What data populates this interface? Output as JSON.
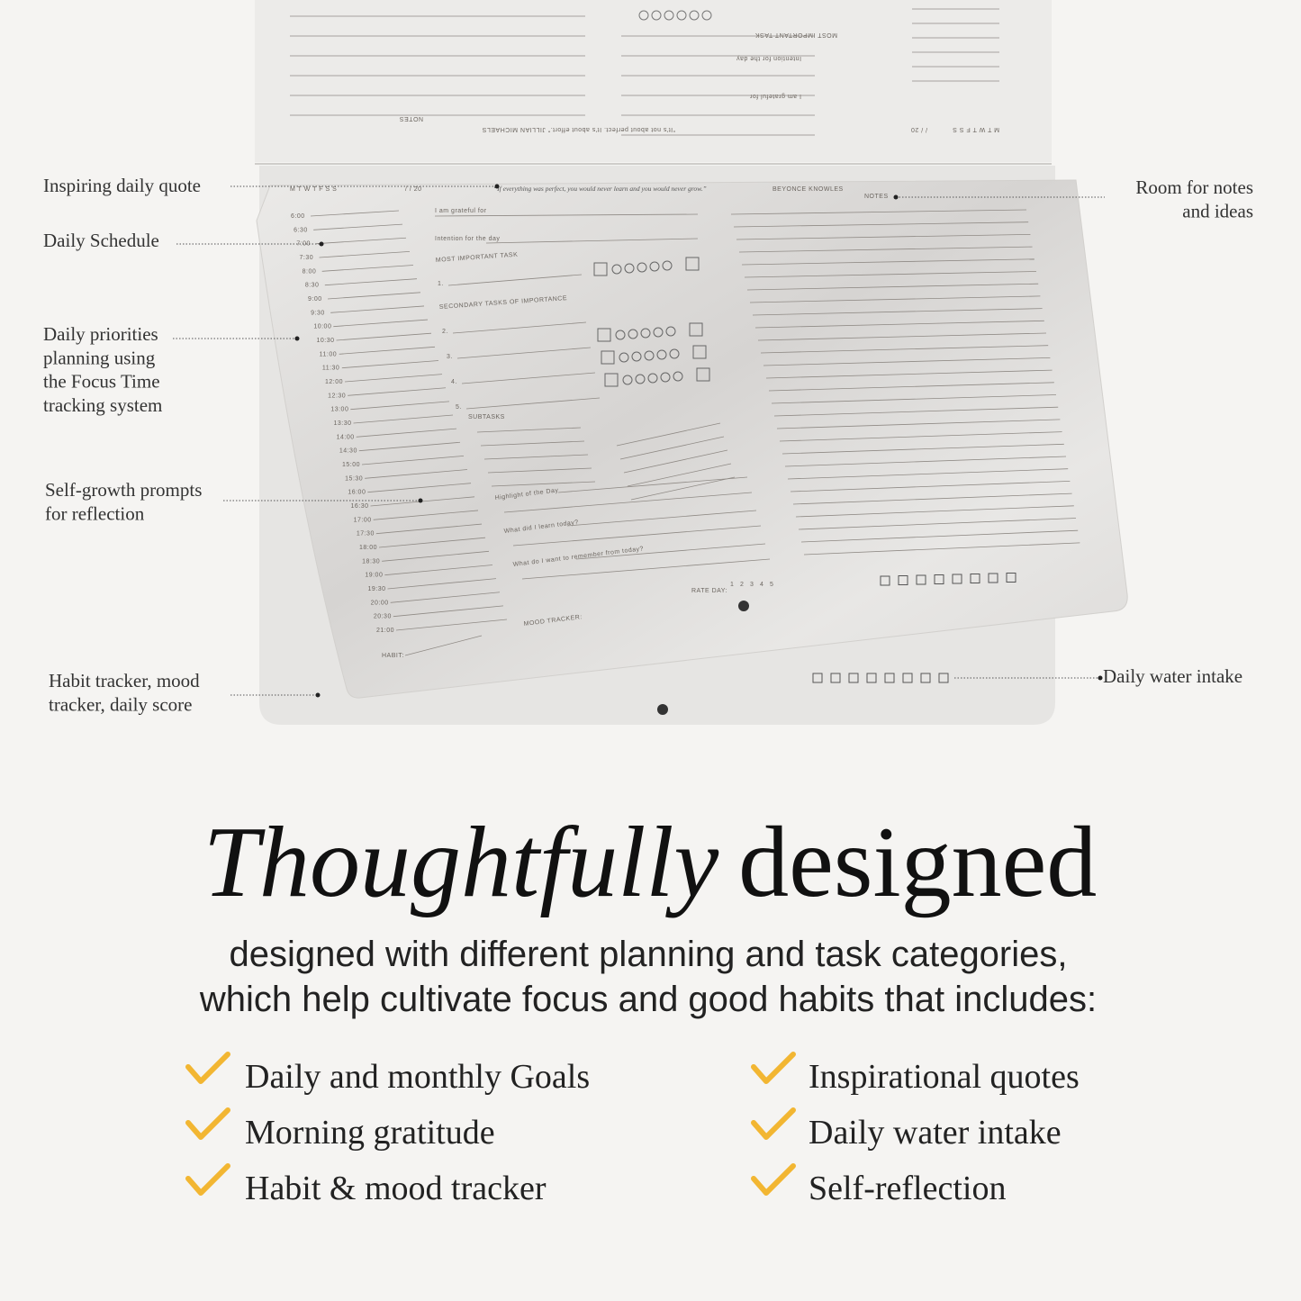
{
  "callouts": [
    {
      "lines": [
        "Inspiring daily quote"
      ]
    },
    {
      "lines": [
        "Daily Schedule"
      ]
    },
    {
      "lines": [
        "Daily priorities",
        "planning using",
        "the Focus Time",
        "tracking system"
      ]
    },
    {
      "lines": [
        "Self-growth prompts",
        "for reflection"
      ]
    },
    {
      "lines": [
        "Habit tracker, mood",
        "tracker, daily score"
      ]
    },
    {
      "lines": [
        "Room for notes",
        "and ideas"
      ]
    },
    {
      "lines": [
        "Daily water intake"
      ]
    }
  ],
  "back_page": {
    "notes": "NOTES",
    "most_important": "MOST IMPORTANT TASK",
    "intention": "Intention for the day",
    "grateful": "I am grateful for",
    "quote": "“It's not about perfect. It's about effort.” JILLIAN MICHAELS",
    "weekdays": "M T W T F S S",
    "date": "/ / 20"
  },
  "planner": {
    "weekdays": "M T W T F S S",
    "date": "/ / 20",
    "quote": "“If everything was perfect, you would never learn and you would never grow.”",
    "quote_author": "BEYONCE KNOWLES",
    "notes": "NOTES",
    "grateful": "I am grateful for",
    "intention": "Intention for the day",
    "most_important": "MOST IMPORTANT TASK",
    "secondary": "SECONDARY TASKS OF IMPORTANCE",
    "subtasks": "SUBTASKS",
    "task_numbers": [
      "1.",
      "2.",
      "3.",
      "4.",
      "5."
    ],
    "prompts": [
      "Highlight of the Day",
      "What did I learn today?",
      "What do I want to remember from today?"
    ],
    "mood": "MOOD TRACKER:",
    "rate": "RATE DAY:",
    "rate_scale": [
      "1",
      "2",
      "3",
      "4",
      "5"
    ],
    "habit": "HABIT:",
    "times": [
      "6:00",
      "6:30",
      "7:00",
      "7:30",
      "8:00",
      "8:30",
      "9:00",
      "9:30",
      "10:00",
      "10:30",
      "11:00",
      "11:30",
      "12:00",
      "12:30",
      "13:00",
      "13:30",
      "14:00",
      "14:30",
      "15:00",
      "15:30",
      "16:00",
      "16:30",
      "17:00",
      "17:30",
      "18:00",
      "18:30",
      "19:00",
      "19:30",
      "20:00",
      "20:30",
      "21:00"
    ]
  },
  "headline": {
    "italic": "Thoughtfully",
    "regular": "designed"
  },
  "subtitle": [
    "designed with different planning and task categories,",
    "which help cultivate focus and good habits that includes:"
  ],
  "features": [
    [
      "Daily and monthly Goals",
      "Morning gratitude",
      "Habit & mood tracker"
    ],
    [
      "Inspirational quotes",
      "Daily water intake",
      "Self-reflection"
    ]
  ]
}
